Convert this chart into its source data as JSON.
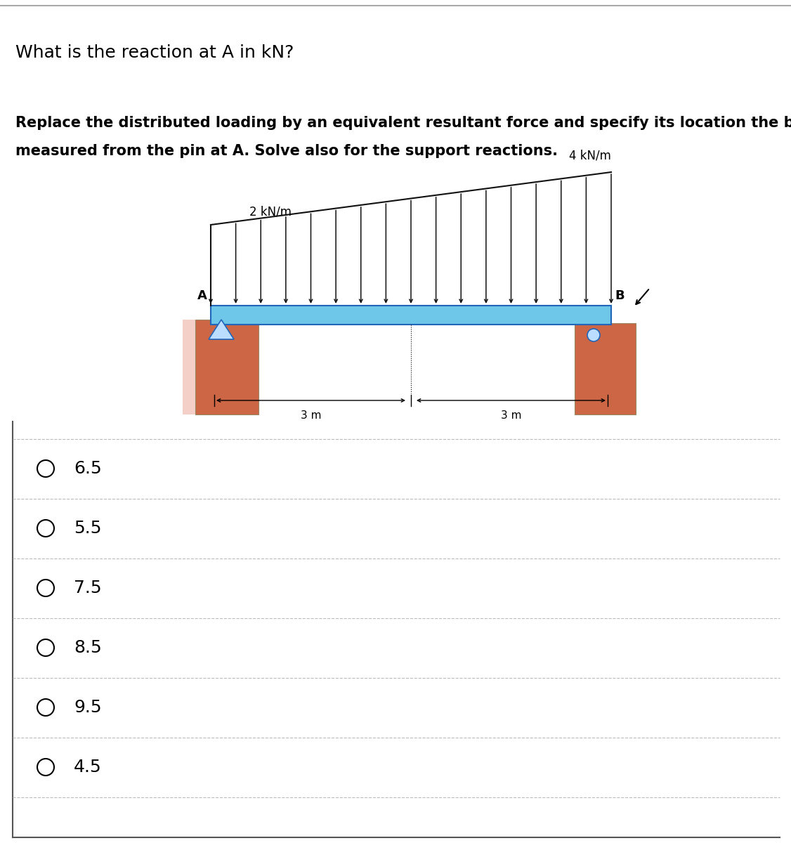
{
  "title": "What is the reaction at A in kN?",
  "subtitle_line1": "Replace the distributed loading by an equivalent resultant force and specify its location the beam",
  "subtitle_line2": "measured from the pin at A. Solve also for the support reactions.",
  "label_4kn": "4 kN/m",
  "label_2kn": "2 kN/m",
  "label_A": "A",
  "label_B": "B",
  "label_3m_left": "3 m",
  "label_3m_right": "3 m",
  "options": [
    "6.5",
    "5.5",
    "7.5",
    "8.5",
    "9.5",
    "4.5"
  ],
  "bg_color": "#ffffff",
  "beam_color": "#6ec6e8",
  "support_color": "#cc6644",
  "arrow_color": "#111111",
  "title_fontsize": 18,
  "subtitle_fontsize": 15,
  "option_fontsize": 18
}
